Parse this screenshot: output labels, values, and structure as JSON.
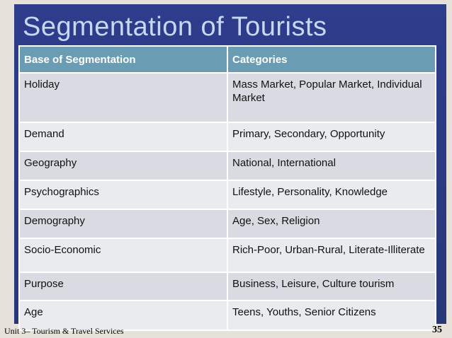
{
  "header": {
    "title": "Segmentation of Tourists"
  },
  "table": {
    "columns": [
      "Base of Segmentation",
      "Categories"
    ],
    "rows": [
      [
        "Holiday",
        "Mass Market, Popular Market, Individual Market"
      ],
      [
        "Demand",
        "Primary, Secondary, Opportunity"
      ],
      [
        "Geography",
        "National, International"
      ],
      [
        "Psychographics",
        "Lifestyle, Personality, Knowledge"
      ],
      [
        "Demography",
        "Age, Sex, Religion"
      ],
      [
        "Socio-Economic",
        "Rich-Poor, Urban-Rural, Literate-Illiterate"
      ],
      [
        "Purpose",
        "Business, Leisure, Culture tourism"
      ],
      [
        "Age",
        "Teens, Youths, Senior Citizens"
      ]
    ]
  },
  "footer": {
    "left": "Unit 3– Tourism & Travel Services",
    "page": "35"
  }
}
